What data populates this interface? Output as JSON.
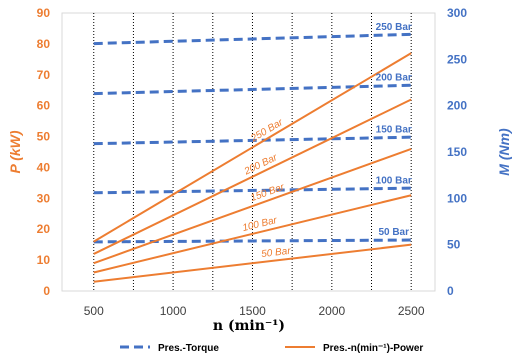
{
  "chart_data": {
    "type": "line",
    "xlabel": "n (min⁻¹)",
    "ylabel_left": "P (kW)",
    "ylabel_right": "M (Nm)",
    "xlim": [
      300,
      2650
    ],
    "ylim_left": [
      0,
      90
    ],
    "ylim_right": [
      0,
      300
    ],
    "x_ticks": [
      "500",
      "1000",
      "1500",
      "2000",
      "2500"
    ],
    "y_left_ticks": [
      "0",
      "10",
      "20",
      "30",
      "40",
      "50",
      "60",
      "70",
      "80",
      "90"
    ],
    "y_right_ticks": [
      "0",
      "50",
      "100",
      "150",
      "200",
      "250",
      "300"
    ],
    "x_gridlines": [
      500,
      750,
      1000,
      1250,
      1500,
      1750,
      2000,
      2250,
      2500
    ],
    "grid": true,
    "colors": {
      "power": "#ed7d31",
      "torque": "#4472c4"
    },
    "power_series": [
      {
        "label": "50 Bar",
        "x": [
          500,
          2500
        ],
        "y": [
          3,
          15
        ]
      },
      {
        "label": "100 Bar",
        "x": [
          500,
          2500
        ],
        "y": [
          6,
          31
        ]
      },
      {
        "label": "150 Bar",
        "x": [
          500,
          2500
        ],
        "y": [
          9,
          46
        ]
      },
      {
        "label": "200 Bar",
        "x": [
          500,
          2500
        ],
        "y": [
          12,
          62
        ]
      },
      {
        "label": "250 Bar",
        "x": [
          500,
          2500
        ],
        "y": [
          16,
          77
        ]
      }
    ],
    "torque_series": [
      {
        "label": "50 Bar",
        "x": [
          500,
          2500
        ],
        "y": [
          53,
          55
        ]
      },
      {
        "label": "100 Bar",
        "x": [
          500,
          2500
        ],
        "y": [
          106,
          111
        ]
      },
      {
        "label": "150 Bar",
        "x": [
          500,
          2500
        ],
        "y": [
          159,
          166
        ]
      },
      {
        "label": "200 Bar",
        "x": [
          500,
          2500
        ],
        "y": [
          213,
          222
        ]
      },
      {
        "label": "250 Bar",
        "x": [
          500,
          2500
        ],
        "y": [
          267,
          277
        ]
      }
    ],
    "legend": {
      "position": "bottom",
      "items": [
        {
          "label": "Pres.-Torque",
          "style": "dashed",
          "color": "#4472c4"
        },
        {
          "label": "Pres.-n(min⁻¹)-Power",
          "style": "solid",
          "color": "#ed7d31"
        }
      ]
    }
  }
}
